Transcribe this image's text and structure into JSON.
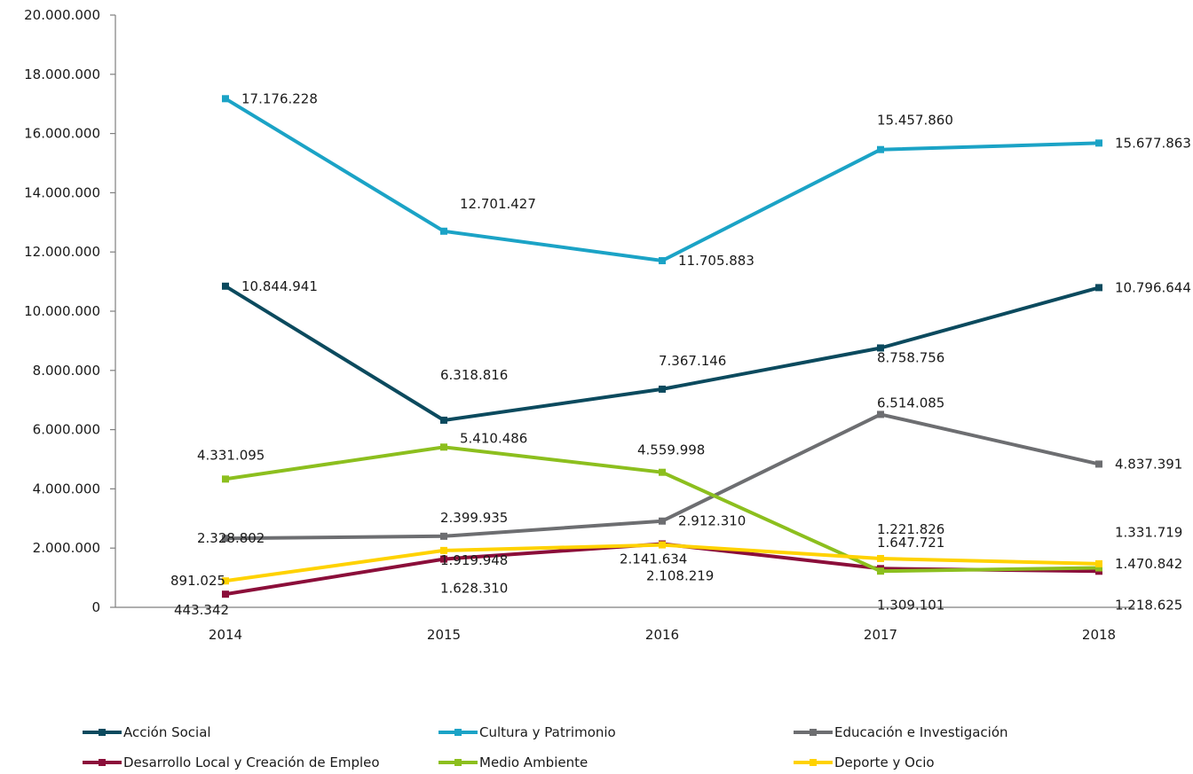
{
  "chart_data": {
    "type": "line",
    "title": "",
    "xlabel": "",
    "ylabel": "",
    "categories": [
      "2014",
      "2015",
      "2016",
      "2017",
      "2018"
    ],
    "ylim": [
      0,
      20000000
    ],
    "y_ticks": [
      "0",
      "2.000.000",
      "4.000.000",
      "6.000.000",
      "8.000.000",
      "10.000.000",
      "12.000.000",
      "14.000.000",
      "16.000.000",
      "18.000.000",
      "20.000.000"
    ],
    "y_tick_values": [
      0,
      2000000,
      4000000,
      6000000,
      8000000,
      10000000,
      12000000,
      14000000,
      16000000,
      18000000,
      20000000
    ],
    "grid": false,
    "legend_position": "bottom",
    "series": [
      {
        "name": "Acción Social",
        "color": "#0b4a5e",
        "values": [
          10844941,
          6318816,
          7367146,
          8758756,
          10796644
        ],
        "labels": [
          "10.844.941",
          "6.318.816",
          "7.367.146",
          "8.758.756",
          "10.796.644"
        ]
      },
      {
        "name": "Cultura y Patrimonio",
        "color": "#1ba3c6",
        "values": [
          17176228,
          12701427,
          11705883,
          15457860,
          15677863
        ],
        "labels": [
          "17.176.228",
          "12.701.427",
          "11.705.883",
          "15.457.860",
          "15.677.863"
        ]
      },
      {
        "name": "Educación e Investigación",
        "color": "#6d6e71",
        "values": [
          2328802,
          2399935,
          2912310,
          6514085,
          4837391
        ],
        "labels": [
          "2.328.802",
          "2.399.935",
          "2.912.310",
          "6.514.085",
          "4.837.391"
        ]
      },
      {
        "name": "Desarrollo Local y Creación  de Empleo",
        "color": "#8b0e3a",
        "values": [
          443342,
          1628310,
          2141634,
          1309101,
          1218625
        ],
        "labels": [
          "443.342",
          "1.628.310",
          "2.141.634",
          "1.309.101",
          "1.218.625"
        ]
      },
      {
        "name": "Medio Ambiente",
        "color": "#8cbf1e",
        "values": [
          4331095,
          5410486,
          4559998,
          1221826,
          1331719
        ],
        "labels": [
          "4.331.095",
          "5.410.486",
          "4.559.998",
          "1.221.826",
          "1.331.719"
        ]
      },
      {
        "name": "Deporte y Ocio",
        "color": "#ffd200",
        "values": [
          891025,
          1919948,
          2108219,
          1647721,
          1470842
        ],
        "labels": [
          "891.025",
          "1.919.948",
          "2.108.219",
          "1.647.721",
          "1.470.842"
        ]
      }
    ]
  }
}
